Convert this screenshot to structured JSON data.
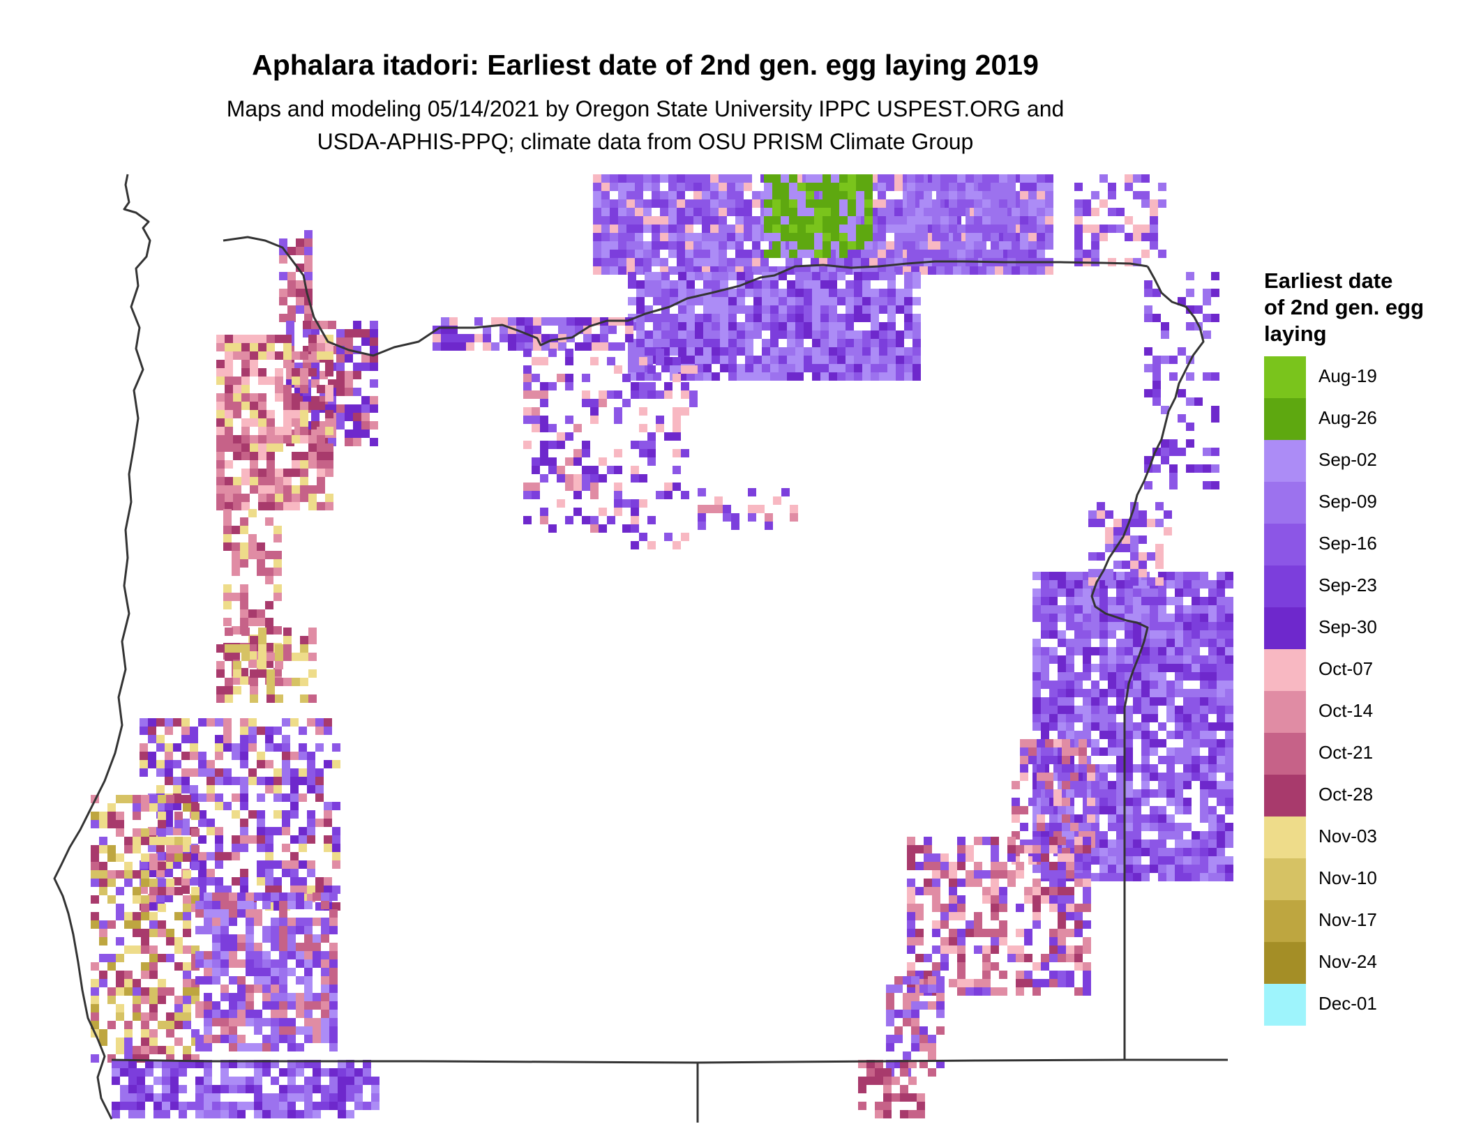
{
  "title": "Aphalara itadori: Earliest date of 2nd gen. egg laying 2019",
  "subtitle_line1": "Maps and modeling 05/14/2021 by Oregon State University IPPC USPEST.ORG and",
  "subtitle_line2": "USDA-APHIS-PPQ; climate data from OSU PRISM Climate Group",
  "legend": {
    "title_lines": [
      "Earliest date",
      "of 2nd gen. egg",
      "laying"
    ],
    "items": [
      {
        "label": "Aug-19",
        "color": "#7ac41c"
      },
      {
        "label": "Aug-26",
        "color": "#5ea810"
      },
      {
        "label": "Sep-02",
        "color": "#ac8cf6"
      },
      {
        "label": "Sep-09",
        "color": "#9c72ee"
      },
      {
        "label": "Sep-16",
        "color": "#8c56e6"
      },
      {
        "label": "Sep-23",
        "color": "#7c3edc"
      },
      {
        "label": "Sep-30",
        "color": "#6e28cc"
      },
      {
        "label": "Oct-07",
        "color": "#f8b8c2"
      },
      {
        "label": "Oct-14",
        "color": "#e08ca4"
      },
      {
        "label": "Oct-21",
        "color": "#c66288"
      },
      {
        "label": "Oct-28",
        "color": "#a83a6c"
      },
      {
        "label": "Nov-03",
        "color": "#eedc8a"
      },
      {
        "label": "Nov-10",
        "color": "#d6c264"
      },
      {
        "label": "Nov-17",
        "color": "#bea640"
      },
      {
        "label": "Nov-24",
        "color": "#a48e26"
      },
      {
        "label": "Dec-01",
        "color": "#9ef4fc"
      }
    ]
  }
}
